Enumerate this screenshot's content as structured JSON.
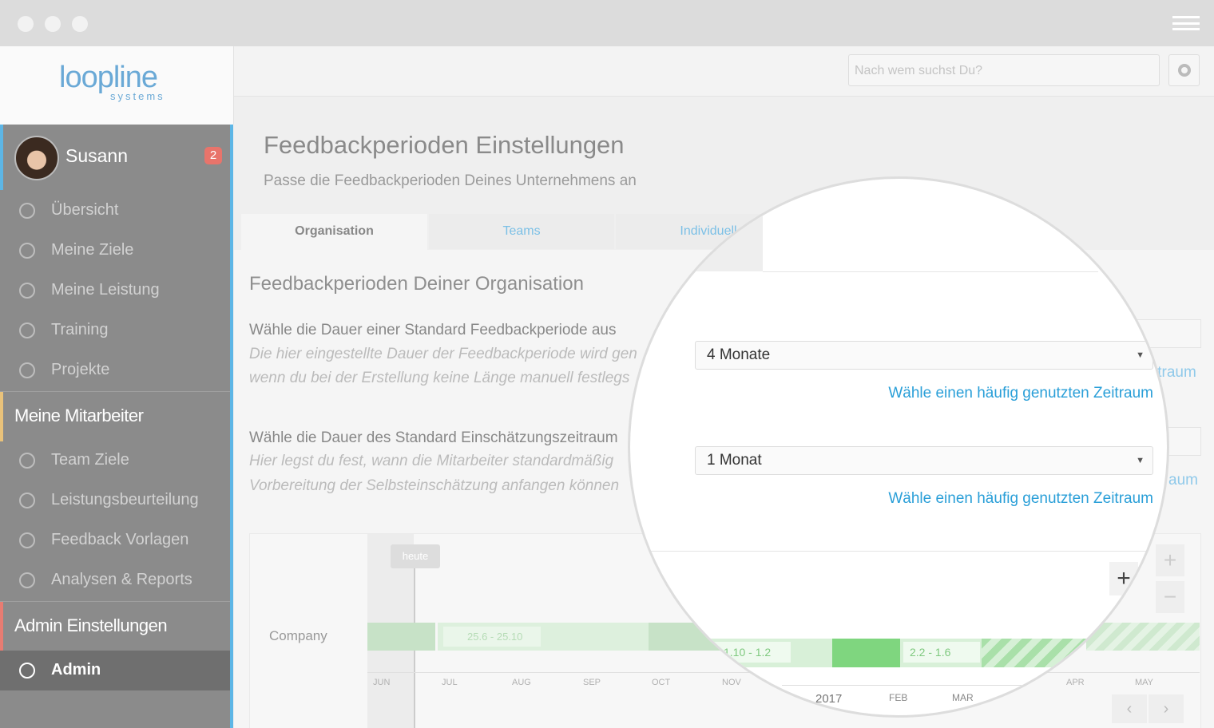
{
  "logo": {
    "name": "loopline",
    "tagline": "systems"
  },
  "user": {
    "name": "Susann",
    "badge": "2"
  },
  "nav": {
    "personal": [
      "Übersicht",
      "Meine Ziele",
      "Meine Leistung",
      "Training",
      "Projekte"
    ],
    "team_header": "Meine Mitarbeiter",
    "team": [
      "Team Ziele",
      "Leistungsbeurteilung",
      "Feedback Vorlagen",
      "Analysen & Reports"
    ],
    "admin_header": "Admin Einstellungen",
    "admin": [
      "Admin"
    ]
  },
  "search": {
    "placeholder": "Nach wem suchst Du?"
  },
  "page": {
    "title": "Feedbackperioden Einstellungen",
    "subtitle": "Passe die Feedbackperioden Deines Unternehmens an"
  },
  "tabs": [
    "Organisation",
    "Teams",
    "Individuell"
  ],
  "section": {
    "title": "Feedbackperioden Deiner Organisation"
  },
  "fields": [
    {
      "label": "Wähle die Dauer einer Standard Feedbackperiode aus",
      "description": [
        "Die hier eingestellte Dauer der Feedbackperiode wird gen",
        "wenn du bei der Erstellung keine Länge manuell festlegs"
      ],
      "value": "4 Monate",
      "link": "Wähle einen häufig genutzten Zeitraum",
      "fragment": "itraum"
    },
    {
      "label": "Wähle die Dauer des Standard Einschätzungszeitraum",
      "description": [
        "Hier legst du fest, wann die Mitarbeiter standardmäßig",
        "Vorbereitung der Selbsteinschätzung anfangen können"
      ],
      "value": "1 Monat",
      "link": "Wähle einen häufig genutzten Zeitraum",
      "fragment": "aum"
    }
  ],
  "timeline": {
    "today": "heute",
    "row": "Company",
    "periods": [
      "25.6 - 25.10",
      "1.10 - 1.2",
      "2.2 - 1.6"
    ],
    "months": [
      "JUN",
      "JUL",
      "AUG",
      "SEP",
      "OCT",
      "NOV",
      "FEB",
      "MAR",
      "APR",
      "MAY"
    ],
    "year": "2017",
    "zoom_in": "+",
    "zoom_out": "−"
  }
}
